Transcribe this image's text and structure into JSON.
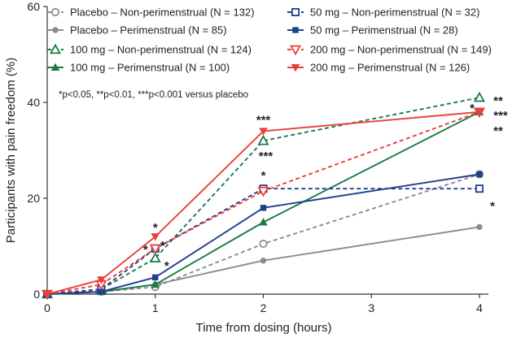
{
  "chart_data": {
    "type": "line",
    "xlabel": "Time from dosing (hours)",
    "ylabel": "Participants with pain freedom (%)",
    "xlim": [
      0,
      4
    ],
    "ylim": [
      0,
      60
    ],
    "x_ticks": [
      "0",
      "1",
      "2",
      "3",
      "4"
    ],
    "y_ticks": [
      "0",
      "20",
      "40",
      "60"
    ],
    "legend_position": "top",
    "note": "*p<0.05, **p<0.01, ***p<0.001 versus placebo",
    "series": [
      {
        "id": "pl-np",
        "name": "Placebo – Non-perimenstrual (N = 132)",
        "color": "#8c8c8c",
        "dashed": true,
        "marker": "circle-open",
        "x": [
          0,
          0.5,
          1,
          2,
          4
        ],
        "values": [
          0,
          0.5,
          1.5,
          10.5,
          25
        ]
      },
      {
        "id": "pl-p",
        "name": "Placebo – Perimenstrual (N = 85)",
        "color": "#8c8c8c",
        "dashed": false,
        "marker": "circle",
        "x": [
          0,
          0.5,
          1,
          2,
          4
        ],
        "values": [
          0,
          0.5,
          2,
          7,
          14
        ]
      },
      {
        "id": "d100-np",
        "name": "100 mg – Non-perimenstrual (N = 124)",
        "color": "#1a7a48",
        "dashed": true,
        "marker": "triangle-up-open",
        "x": [
          0,
          0.5,
          1,
          2,
          4
        ],
        "values": [
          0,
          1,
          7.5,
          32,
          41
        ]
      },
      {
        "id": "d100-p",
        "name": "100 mg – Perimenstrual (N = 100)",
        "color": "#1a7a48",
        "dashed": false,
        "marker": "triangle-up",
        "x": [
          0,
          0.5,
          1,
          2,
          4
        ],
        "values": [
          0,
          0.5,
          2,
          15,
          38
        ]
      },
      {
        "id": "d50-np",
        "name": "50 mg – Non-perimenstrual (N = 32)",
        "color": "#1f3f8f",
        "dashed": true,
        "marker": "square-open",
        "x": [
          0,
          0.5,
          1,
          2,
          4
        ],
        "values": [
          0,
          1,
          9.5,
          22,
          22
        ]
      },
      {
        "id": "d50-p",
        "name": "50 mg – Perimenstrual (N = 28)",
        "color": "#1f3f8f",
        "dashed": false,
        "marker": "square",
        "x": [
          0,
          0.5,
          1,
          2,
          4
        ],
        "values": [
          0,
          0.5,
          3.5,
          18,
          25
        ]
      },
      {
        "id": "d200-np",
        "name": "200 mg – Non-perimenstrual (N = 149)",
        "color": "#e8403a",
        "dashed": true,
        "marker": "triangle-down-open",
        "x": [
          0,
          0.5,
          1,
          2,
          4
        ],
        "values": [
          0,
          2,
          9.5,
          21.5,
          38
        ]
      },
      {
        "id": "d200-p",
        "name": "200 mg – Perimenstrual (N = 126)",
        "color": "#e8403a",
        "dashed": false,
        "marker": "triangle-down",
        "x": [
          0,
          0.5,
          1,
          2,
          4
        ],
        "values": [
          0,
          3,
          12,
          34,
          38
        ]
      }
    ],
    "annotations": [
      {
        "text": "*",
        "x": 1,
        "y": 12
      },
      {
        "text": "*",
        "x": 1,
        "y": 9.5
      },
      {
        "text": "*",
        "x": 1,
        "y": 9.5
      },
      {
        "text": "*",
        "x": 1,
        "y": 7.5
      },
      {
        "text": "***",
        "x": 2,
        "y": 34
      },
      {
        "text": "***",
        "x": 2,
        "y": 32
      },
      {
        "text": "*",
        "x": 2,
        "y": 22
      },
      {
        "text": "**",
        "x": 4,
        "y": 41
      },
      {
        "text": "*",
        "x": 4,
        "y": 38
      },
      {
        "text": "***",
        "x": 4,
        "y": 38
      },
      {
        "text": "**",
        "x": 4,
        "y": 38
      },
      {
        "text": "*",
        "x": 4,
        "y": 25
      }
    ]
  }
}
